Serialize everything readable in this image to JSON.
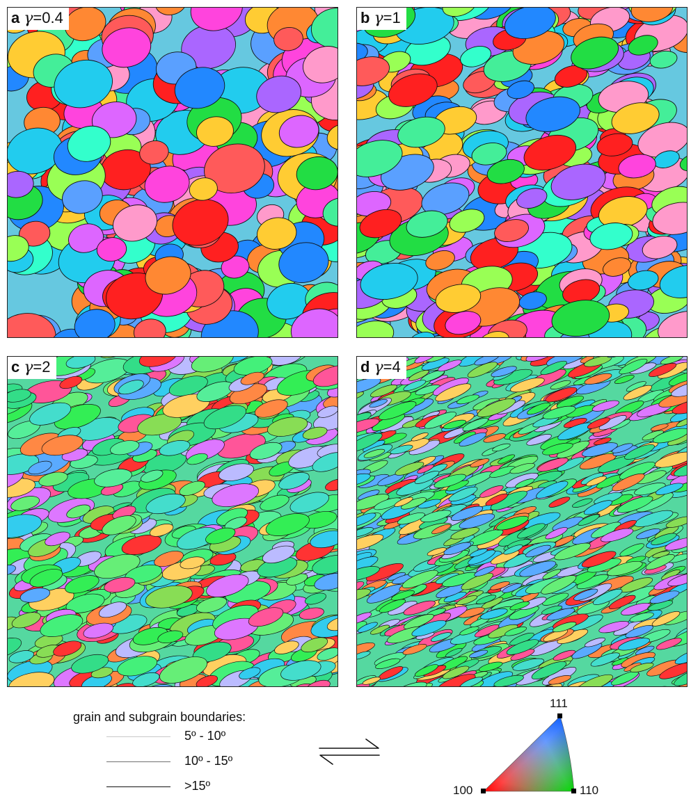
{
  "panels": [
    {
      "id": "a",
      "letter": "a",
      "symbol": "γ",
      "value": "=0.4",
      "strain": 0.4,
      "palette": "mixed"
    },
    {
      "id": "b",
      "letter": "b",
      "symbol": "γ",
      "value": "=1",
      "strain": 1,
      "palette": "mixed"
    },
    {
      "id": "c",
      "letter": "c",
      "symbol": "γ",
      "value": "=2",
      "strain": 2,
      "palette": "green-dominant"
    },
    {
      "id": "d",
      "letter": "d",
      "symbol": "γ",
      "value": "=4",
      "strain": 4,
      "palette": "green-dominant"
    }
  ],
  "legend": {
    "title": "grain and subgrain boundaries:",
    "items": [
      {
        "label": "5º - 10º",
        "color": "#c8c8c8"
      },
      {
        "label": "10º - 15º",
        "color": "#6f6f6f"
      },
      {
        "label": ">15º",
        "color": "#111111"
      }
    ]
  },
  "ipf_key": {
    "labels": {
      "corner_100": "100",
      "corner_110": "110",
      "corner_111": "111"
    },
    "colors": {
      "corner_100": "#ff0000",
      "corner_110": "#00e000",
      "corner_111": "#1060ff"
    }
  }
}
